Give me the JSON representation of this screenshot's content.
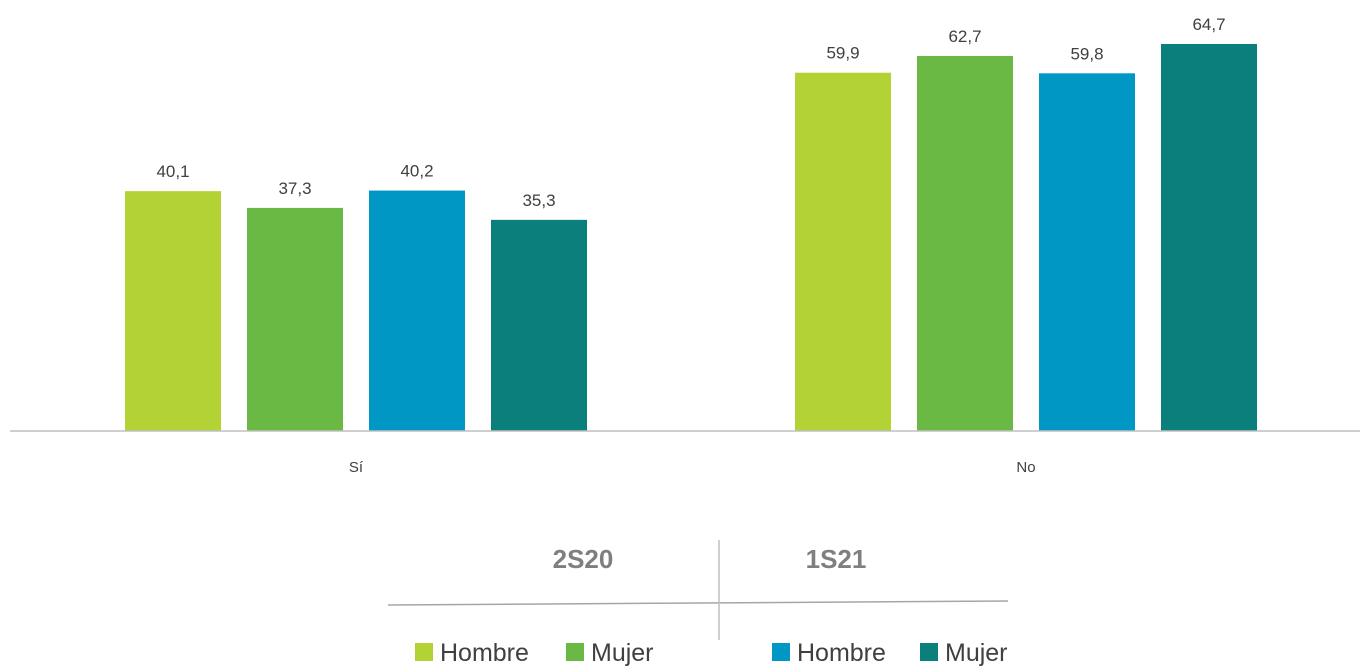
{
  "chart_data": {
    "type": "bar",
    "categories": [
      "Sí",
      "No"
    ],
    "series": [
      {
        "name": "Hombre",
        "group": "2S20",
        "color": "#b2d235",
        "values": [
          40.1,
          59.9
        ],
        "labels": [
          "40,1",
          "59,9"
        ]
      },
      {
        "name": "Mujer",
        "group": "2S20",
        "color": "#6ab945",
        "values": [
          37.3,
          62.7
        ],
        "labels": [
          "37,3",
          "62,7"
        ]
      },
      {
        "name": "Hombre",
        "group": "1S21",
        "color": "#0097c4",
        "values": [
          40.2,
          59.8
        ],
        "labels": [
          "40,2",
          "59,8"
        ]
      },
      {
        "name": "Mujer",
        "group": "1S21",
        "color": "#0a7f7b",
        "values": [
          35.3,
          64.7
        ],
        "labels": [
          "35,3",
          "64,7"
        ]
      }
    ],
    "groups": [
      "2S20",
      "1S21"
    ],
    "title": "",
    "xlabel": "",
    "ylabel": "",
    "ylim": [
      0,
      66
    ],
    "grid": false,
    "legend": "bottom-center"
  },
  "colors": {
    "axis": "#bfbfbf",
    "divider": "#a6a6a6"
  }
}
